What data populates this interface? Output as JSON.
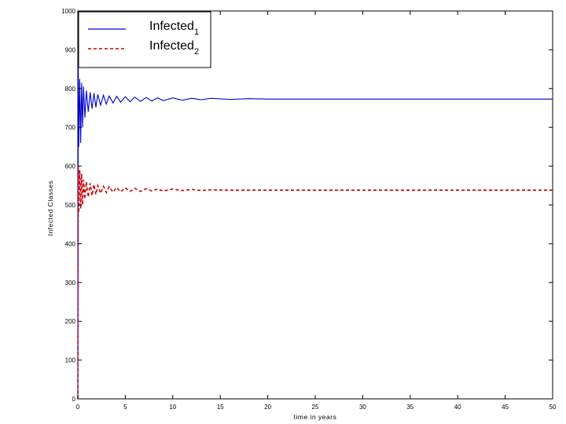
{
  "chart_data": {
    "type": "line",
    "title": "",
    "xlabel": "time in years",
    "ylabel": "Infected Classes",
    "xlim": [
      0,
      50
    ],
    "ylim": [
      0,
      1000
    ],
    "xticks": [
      0,
      5,
      10,
      15,
      20,
      25,
      30,
      35,
      40,
      45,
      50
    ],
    "yticks": [
      0,
      100,
      200,
      300,
      400,
      500,
      600,
      700,
      800,
      900,
      1000
    ],
    "grid": false,
    "legend_position": "top-left",
    "series": [
      {
        "name": "Infected",
        "subscript": "1",
        "color": "#0000cc",
        "style": "solid",
        "x": [
          0,
          0.05,
          0.1,
          0.2,
          0.3,
          0.4,
          0.5,
          0.6,
          0.75,
          0.9,
          1.1,
          1.3,
          1.5,
          1.7,
          1.9,
          2.1,
          2.4,
          2.7,
          3.0,
          3.3,
          3.7,
          4.1,
          4.5,
          5.0,
          5.5,
          6.0,
          6.6,
          7.2,
          7.8,
          8.4,
          9.0,
          10.0,
          11.0,
          12.0,
          13.0,
          14.0,
          16.0,
          18.0,
          20.0,
          25.0,
          30.0,
          35.0,
          40.0,
          45.0,
          50.0
        ],
        "values": [
          0,
          860,
          650,
          825,
          660,
          815,
          700,
          805,
          725,
          795,
          740,
          790,
          748,
          788,
          752,
          785,
          757,
          783,
          760,
          781,
          763,
          780,
          765,
          779,
          766,
          778,
          767,
          777,
          768,
          776,
          769,
          776,
          770,
          775,
          771,
          775,
          772,
          774,
          773,
          773,
          773,
          773,
          773,
          773,
          773
        ]
      },
      {
        "name": "Infected",
        "subscript": "2",
        "color": "#cc0000",
        "style": "dashed",
        "x": [
          0,
          0.05,
          0.1,
          0.2,
          0.3,
          0.4,
          0.5,
          0.6,
          0.75,
          0.9,
          1.1,
          1.3,
          1.5,
          1.7,
          1.9,
          2.1,
          2.4,
          2.7,
          3.0,
          3.3,
          3.7,
          4.1,
          4.5,
          5.0,
          5.5,
          6.0,
          6.6,
          7.2,
          7.8,
          8.4,
          9.0,
          10.0,
          11.0,
          12.0,
          13.0,
          14.0,
          16.0,
          18.0,
          20.0,
          25.0,
          30.0,
          35.0,
          40.0,
          45.0,
          50.0
        ],
        "values": [
          0,
          600,
          480,
          590,
          490,
          580,
          500,
          565,
          515,
          560,
          520,
          556,
          524,
          553,
          527,
          550,
          530,
          548,
          532,
          547,
          533,
          545,
          534,
          544,
          535,
          543,
          535,
          542,
          536,
          541,
          536,
          541,
          537,
          540,
          537,
          539,
          538,
          538,
          538,
          538,
          538,
          538,
          538,
          538,
          538
        ]
      }
    ]
  }
}
